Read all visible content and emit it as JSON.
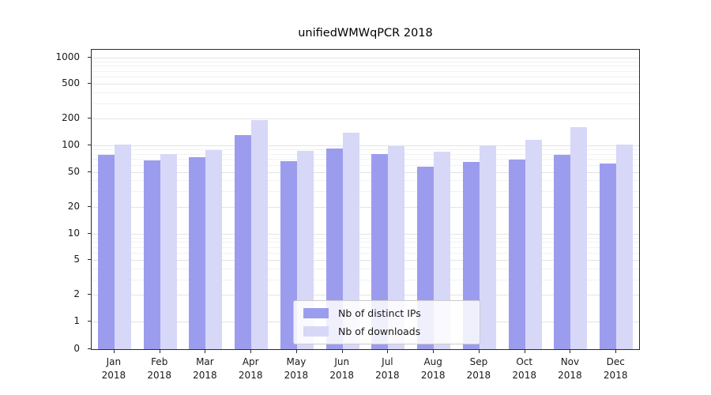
{
  "chart_data": {
    "type": "bar",
    "title": "unifiedWMWqPCR 2018",
    "year_label": "2018",
    "categories": [
      "Jan",
      "Feb",
      "Mar",
      "Apr",
      "May",
      "Jun",
      "Jul",
      "Aug",
      "Sep",
      "Oct",
      "Nov",
      "Dec"
    ],
    "series": [
      {
        "name": "Nb of distinct IPs",
        "color": "#9c9cee",
        "values": [
          78,
          68,
          73,
          130,
          66,
          92,
          79,
          57,
          65,
          69,
          78,
          62
        ]
      },
      {
        "name": "Nb of downloads",
        "color": "#d7d7f8",
        "values": [
          103,
          80,
          88,
          195,
          87,
          140,
          98,
          84,
          100,
          115,
          160,
          103
        ]
      }
    ],
    "yscale": "symlog",
    "ylim": [
      0,
      1000
    ],
    "yticks": [
      0,
      1,
      2,
      5,
      10,
      20,
      50,
      100,
      200,
      500,
      1000
    ],
    "yticks_minor": [
      3,
      4,
      6,
      7,
      8,
      9,
      30,
      40,
      60,
      70,
      80,
      90,
      300,
      400,
      600,
      700,
      800,
      900
    ],
    "grid": true,
    "legend": {
      "position": "lower center",
      "labels": [
        "Nb of distinct IPs",
        "Nb of downloads"
      ]
    }
  }
}
